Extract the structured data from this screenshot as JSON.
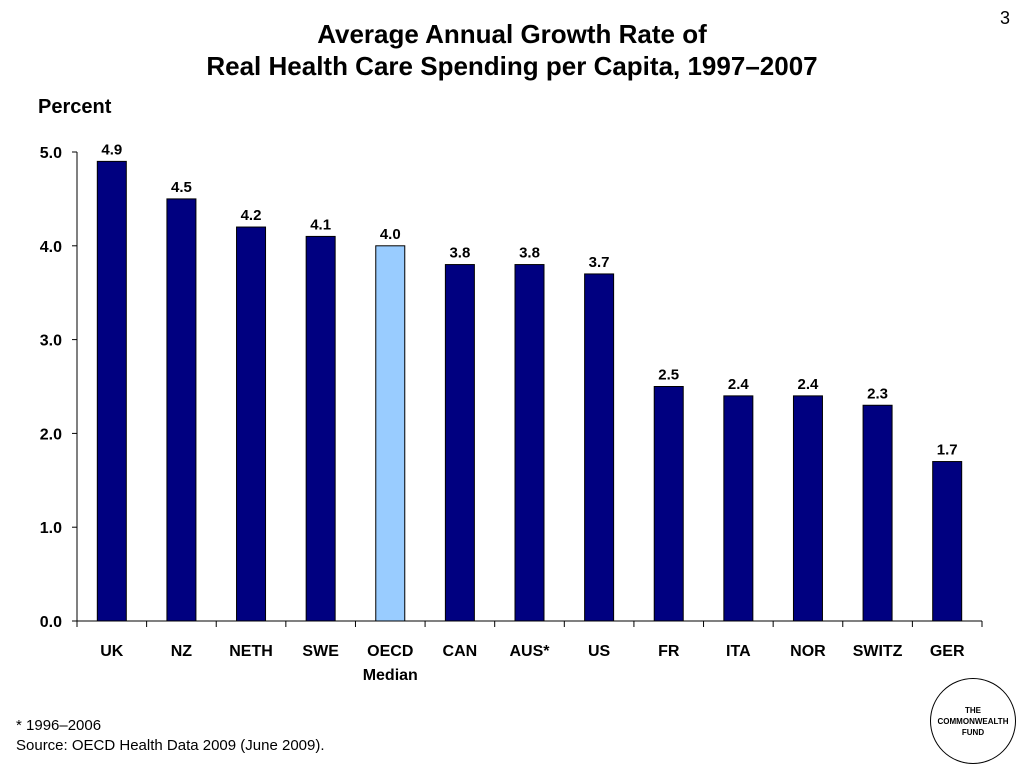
{
  "page_number": "3",
  "title_line1": "Average Annual Growth Rate of",
  "title_line2": "Real Health Care Spending per Capita, 1997–2007",
  "footnote": "* 1996–2006",
  "source": "Source: OECD Health Data 2009 (June 2009).",
  "logo": {
    "line1": "THE",
    "line2": "COMMONWEALTH",
    "line3": "FUND"
  },
  "colors": {
    "bar": "#000080",
    "highlight": "#99ccff",
    "outline": "#000000"
  },
  "chart_data": {
    "type": "bar",
    "title": "Average Annual Growth Rate of Real Health Care Spending per Capita, 1997–2007",
    "ylabel": "Percent",
    "ylim": [
      0,
      5
    ],
    "yticks": [
      "0.0",
      "1.0",
      "2.0",
      "3.0",
      "4.0",
      "5.0"
    ],
    "grid": false,
    "categories": [
      "UK",
      "NZ",
      "NETH",
      "SWE",
      "OECD\nMedian",
      "CAN",
      "AUS*",
      "US",
      "FR",
      "ITA",
      "NOR",
      "SWITZ",
      "GER"
    ],
    "values": [
      4.9,
      4.5,
      4.2,
      4.1,
      4.0,
      3.8,
      3.8,
      3.7,
      2.5,
      2.4,
      2.4,
      2.3,
      1.7
    ],
    "value_labels": [
      "4.9",
      "4.5",
      "4.2",
      "4.1",
      "4.0",
      "3.8",
      "3.8",
      "3.7",
      "2.5",
      "2.4",
      "2.4",
      "2.3",
      "1.7"
    ],
    "highlight_index": 4
  }
}
